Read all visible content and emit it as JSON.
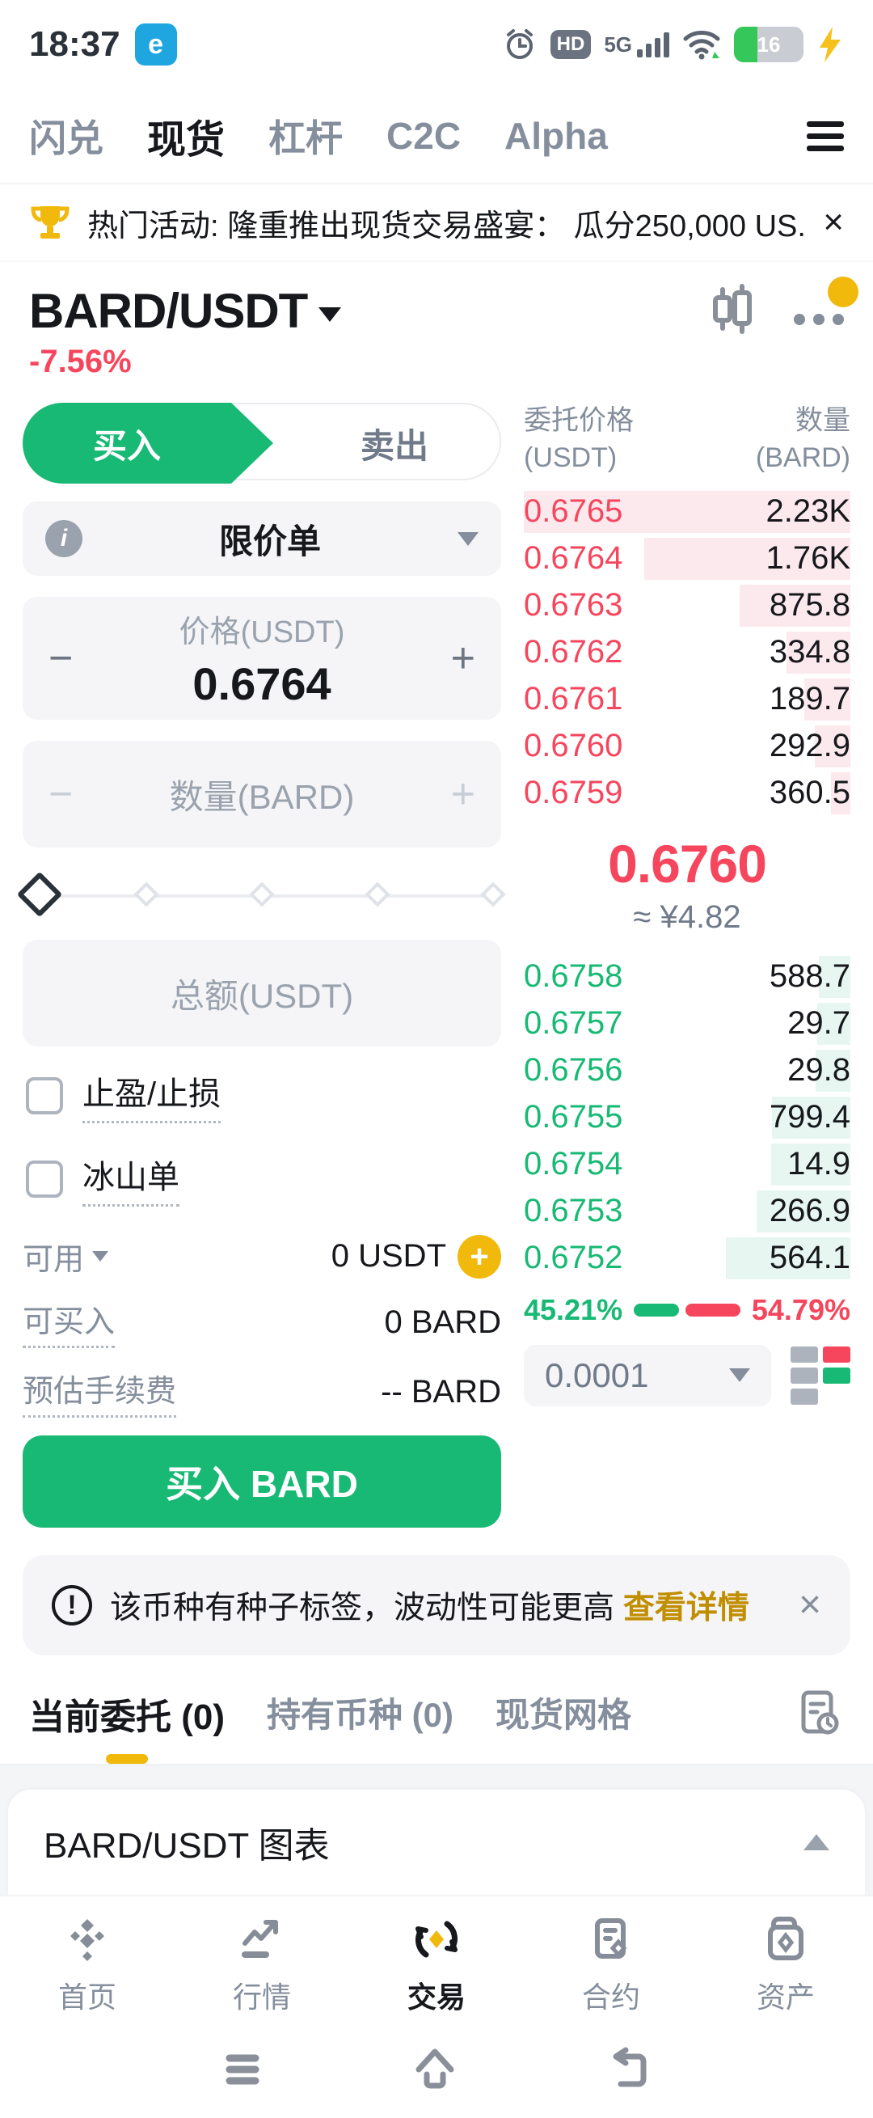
{
  "colors": {
    "green": "#18B974",
    "red": "#F6465D",
    "yellow": "#F0B90B",
    "text": "#16181C",
    "muted": "#848E9C"
  },
  "status_bar": {
    "time": "18:37",
    "network": "5G",
    "hd": "HD",
    "battery": "16"
  },
  "top_nav": {
    "items": [
      {
        "label": "闪兑",
        "active": false
      },
      {
        "label": "现货",
        "active": true
      },
      {
        "label": "杠杆",
        "active": false
      },
      {
        "label": "C2C",
        "active": false
      },
      {
        "label": "Alpha",
        "active": false
      }
    ]
  },
  "banner": {
    "text": "热门活动: 隆重推出现货交易盛宴： 瓜分250,000 US...",
    "close": "×"
  },
  "pair_header": {
    "symbol": "BARD/USDT",
    "change": "-7.56%"
  },
  "trade_form": {
    "buy_tab": "买入",
    "sell_tab": "卖出",
    "order_type": "限价单",
    "info_icon": "i",
    "minus": "−",
    "plus": "+",
    "price_label": "价格(USDT)",
    "price_value": "0.6764",
    "amount_placeholder": "数量(BARD)",
    "total_placeholder": "总额(USDT)",
    "tpsl_label": "止盈/止损",
    "iceberg_label": "冰山单",
    "available_label": "可用",
    "available_value": "0 USDT",
    "max_buy_label": "可买入",
    "max_buy_value": "0 BARD",
    "fee_label": "预估手续费",
    "fee_value": "-- BARD",
    "submit_label": "买入 BARD"
  },
  "order_book": {
    "price_header": "委托价格",
    "price_unit": "(USDT)",
    "qty_header": "数量",
    "qty_unit": "(BARD)",
    "asks": [
      {
        "price": "0.6765",
        "qty": "2.23K",
        "depth": 100
      },
      {
        "price": "0.6764",
        "qty": "1.76K",
        "depth": 63
      },
      {
        "price": "0.6763",
        "qty": "875.8",
        "depth": 34
      },
      {
        "price": "0.6762",
        "qty": "334.8",
        "depth": 19.5
      },
      {
        "price": "0.6761",
        "qty": "189.7",
        "depth": 14
      },
      {
        "price": "0.6760",
        "qty": "292.9",
        "depth": 10.8
      },
      {
        "price": "0.6759",
        "qty": "360.5",
        "depth": 6
      }
    ],
    "last_price": "0.6760",
    "fiat_value": "≈ ¥4.82",
    "bids": [
      {
        "price": "0.6758",
        "qty": "588.7",
        "depth": 9.7
      },
      {
        "price": "0.6757",
        "qty": "29.7",
        "depth": 10.2
      },
      {
        "price": "0.6756",
        "qty": "29.8",
        "depth": 10.7
      },
      {
        "price": "0.6755",
        "qty": "799.4",
        "depth": 24
      },
      {
        "price": "0.6754",
        "qty": "14.9",
        "depth": 24.2
      },
      {
        "price": "0.6753",
        "qty": "266.9",
        "depth": 28.6
      },
      {
        "price": "0.6752",
        "qty": "564.1",
        "depth": 38
      }
    ],
    "buy_pct": "45.21%",
    "sell_pct": "54.79%",
    "buy_pct_width": 45.21,
    "sell_pct_width": 54.79,
    "precision": "0.0001"
  },
  "warning": {
    "text": "该币种有种子标签，波动性可能更高 ",
    "link": "查看详情",
    "close": "×"
  },
  "positions_tabs": {
    "items": [
      {
        "label": "当前委托 (0)",
        "active": true
      },
      {
        "label": "持有币种 (0)",
        "active": false
      },
      {
        "label": "现货网格",
        "active": false
      }
    ]
  },
  "chart_panel": {
    "title": "BARD/USDT 图表"
  },
  "bottom_nav": {
    "items": [
      {
        "label": "首页",
        "active": false
      },
      {
        "label": "行情",
        "active": false
      },
      {
        "label": "交易",
        "active": true
      },
      {
        "label": "合约",
        "active": false
      },
      {
        "label": "资产",
        "active": false
      }
    ]
  }
}
